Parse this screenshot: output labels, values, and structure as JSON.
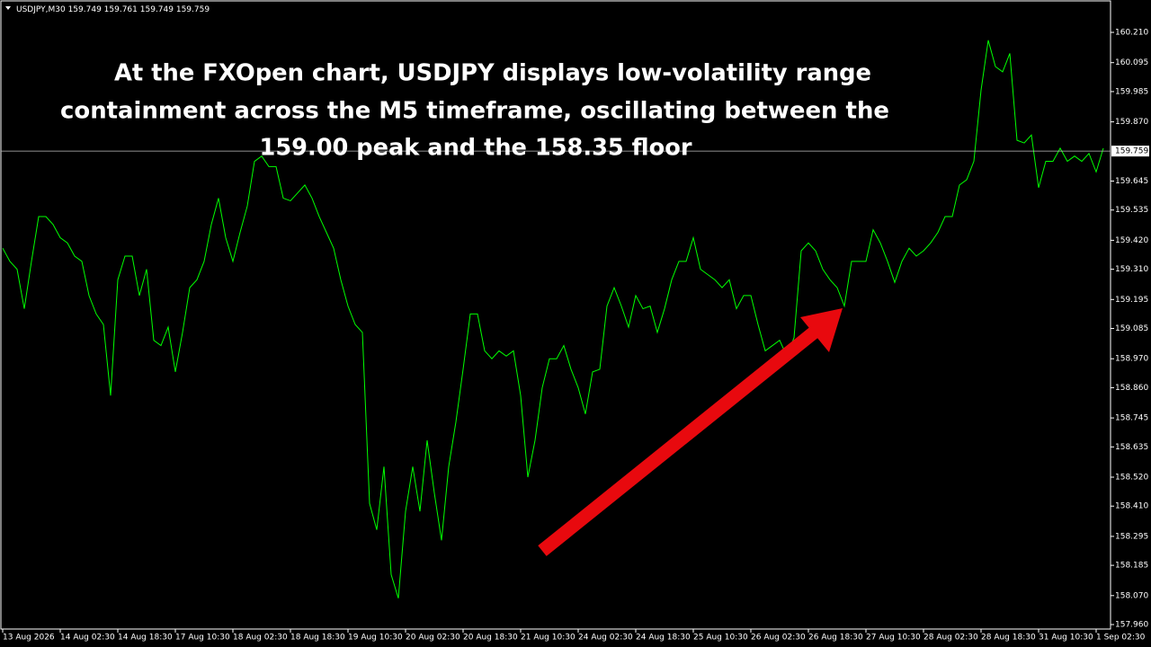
{
  "chart_data": {
    "type": "line",
    "symbol": "USDJPY,M30",
    "ohlc": {
      "open": 159.749,
      "high": 159.761,
      "low": 159.749,
      "close": 159.759
    },
    "annotation": [
      "At the FXOpen chart, USDJPY displays low-volatility range",
      "containment across the M5 timeframe, oscillating between the",
      "159.00 peak and the 158.35 floor"
    ],
    "categories": [
      "13 Aug 2026",
      null,
      null,
      null,
      null,
      null,
      null,
      null,
      "14 Aug 02:30",
      null,
      null,
      null,
      null,
      null,
      null,
      null,
      "14 Aug 18:30",
      null,
      null,
      null,
      null,
      null,
      null,
      null,
      "17 Aug 10:30",
      null,
      null,
      null,
      null,
      null,
      null,
      null,
      "18 Aug 02:30",
      null,
      null,
      null,
      null,
      null,
      null,
      null,
      "18 Aug 18:30",
      null,
      null,
      null,
      null,
      null,
      null,
      null,
      "19 Aug 10:30",
      null,
      null,
      null,
      null,
      null,
      null,
      null,
      "20 Aug 02:30",
      null,
      null,
      null,
      null,
      null,
      null,
      null,
      "20 Aug 18:30",
      null,
      null,
      null,
      null,
      null,
      null,
      null,
      "21 Aug 10:30",
      null,
      null,
      null,
      null,
      null,
      null,
      null,
      "24 Aug 02:30",
      null,
      null,
      null,
      null,
      null,
      null,
      null,
      "24 Aug 18:30",
      null,
      null,
      null,
      null,
      null,
      null,
      null,
      "25 Aug 10:30",
      null,
      null,
      null,
      null,
      null,
      null,
      null,
      "26 Aug 02:30",
      null,
      null,
      null,
      null,
      null,
      null,
      null,
      "26 Aug 18:30",
      null,
      null,
      null,
      null,
      null,
      null,
      null,
      "27 Aug 10:30",
      null,
      null,
      null,
      null,
      null,
      null,
      null,
      "28 Aug 02:30",
      null,
      null,
      null,
      null,
      null,
      null,
      null,
      "28 Aug 18:30",
      null,
      null,
      null,
      null,
      null,
      null,
      null,
      "31 Aug 10:30",
      null,
      null,
      null,
      null,
      null,
      null,
      null,
      "1 Sep 02:30",
      null
    ],
    "series": [
      {
        "name": "USDJPY",
        "color": "#00ff00",
        "values": [
          159.39,
          159.34,
          159.31,
          159.16,
          159.34,
          159.51,
          159.51,
          159.48,
          159.43,
          159.41,
          159.36,
          159.34,
          159.21,
          159.14,
          159.1,
          158.83,
          159.27,
          159.36,
          159.36,
          159.21,
          159.31,
          159.04,
          159.02,
          159.09,
          158.92,
          159.07,
          159.24,
          159.27,
          159.34,
          159.48,
          159.58,
          159.43,
          159.34,
          159.45,
          159.55,
          159.72,
          159.74,
          159.7,
          159.7,
          159.58,
          159.57,
          159.6,
          159.63,
          159.58,
          159.51,
          159.45,
          159.39,
          159.27,
          159.17,
          159.1,
          159.07,
          158.42,
          158.32,
          158.56,
          158.15,
          158.06,
          158.39,
          158.56,
          158.39,
          158.66,
          158.46,
          158.28,
          158.56,
          158.73,
          158.93,
          159.14,
          159.14,
          159.0,
          158.97,
          159.0,
          158.98,
          159.0,
          158.83,
          158.52,
          158.66,
          158.86,
          158.97,
          158.97,
          159.02,
          158.93,
          158.86,
          158.76,
          158.92,
          158.93,
          159.17,
          159.24,
          159.17,
          159.09,
          159.21,
          159.16,
          159.17,
          159.07,
          159.16,
          159.27,
          159.34,
          159.34,
          159.43,
          159.31,
          159.29,
          159.27,
          159.24,
          159.27,
          159.16,
          159.21,
          159.21,
          159.1,
          159.0,
          159.02,
          159.04,
          158.98,
          159.05,
          159.38,
          159.41,
          159.38,
          159.31,
          159.27,
          159.24,
          159.17,
          159.34,
          159.34,
          159.34,
          159.46,
          159.41,
          159.34,
          159.26,
          159.34,
          159.39,
          159.36,
          159.38,
          159.41,
          159.45,
          159.51,
          159.51,
          159.63,
          159.65,
          159.72,
          159.99,
          160.18,
          160.08,
          160.06,
          160.13,
          159.8,
          159.79,
          159.82,
          159.62,
          159.72,
          159.72,
          159.77,
          159.72,
          159.74,
          159.72,
          159.75,
          159.68,
          159.77
        ]
      }
    ],
    "ylim": [
      157.943,
      160.333
    ],
    "yticks": [
      {
        "value": 160.21,
        "label": "160.210"
      },
      160.095,
      159.985,
      {
        "value": 159.87,
        "label": "159.870"
      },
      159.645,
      159.535,
      {
        "value": 159.42,
        "label": "159.420"
      },
      {
        "value": 159.31,
        "label": "159.310"
      },
      159.195,
      159.085,
      {
        "value": 158.97,
        "label": "158.970"
      },
      {
        "value": 158.86,
        "label": "158.860"
      },
      158.745,
      158.635,
      {
        "value": 158.52,
        "label": "158.520"
      },
      {
        "value": 158.41,
        "label": "158.410"
      },
      158.295,
      158.185,
      {
        "value": 158.07,
        "label": "158.070"
      },
      {
        "value": 157.96,
        "label": "157.960"
      }
    ],
    "grid": false
  }
}
